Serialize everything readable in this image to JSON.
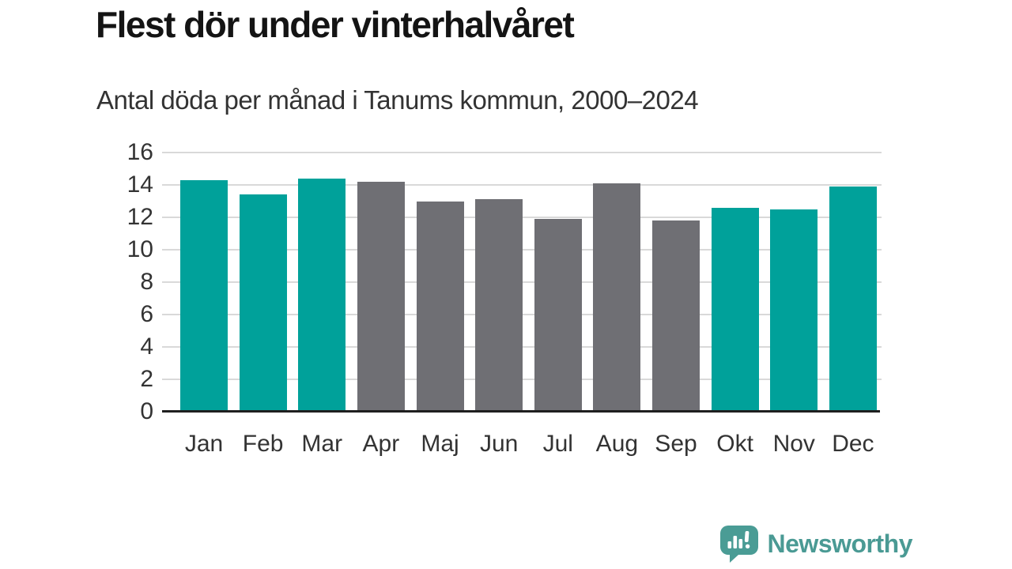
{
  "title": "Flest dör under vinterhalvåret",
  "subtitle": "Antal döda per månad i Tanums kommun, 2000–2024",
  "chart_data": {
    "type": "bar",
    "title": "Flest dör under vinterhalvåret",
    "subtitle": "Antal döda per månad i Tanums kommun, 2000–2024",
    "categories": [
      "Jan",
      "Feb",
      "Mar",
      "Apr",
      "Maj",
      "Jun",
      "Jul",
      "Aug",
      "Sep",
      "Okt",
      "Nov",
      "Dec"
    ],
    "values": [
      14.3,
      13.4,
      14.4,
      14.2,
      13.0,
      13.1,
      11.9,
      14.1,
      11.8,
      12.6,
      12.5,
      13.9
    ],
    "bar_color_keys": [
      "winter",
      "winter",
      "winter",
      "summer",
      "summer",
      "summer",
      "summer",
      "summer",
      "summer",
      "winter",
      "winter",
      "winter"
    ],
    "colors": {
      "winter": "#00a19a",
      "summer": "#6f6f74"
    },
    "xlabel": "",
    "ylabel": "",
    "ylim": [
      0,
      16
    ],
    "yticks": [
      0,
      2,
      4,
      6,
      8,
      10,
      12,
      14,
      16
    ],
    "grid": "horizontal",
    "legend": "none",
    "gridline_color": "#d9d9d9",
    "axis_color": "#1f1f1f",
    "text_color": "#333333"
  },
  "logo": {
    "text": "Newsworthy",
    "color": "#4a9a94",
    "icon": "bar-chart-speech-bubble-icon"
  }
}
